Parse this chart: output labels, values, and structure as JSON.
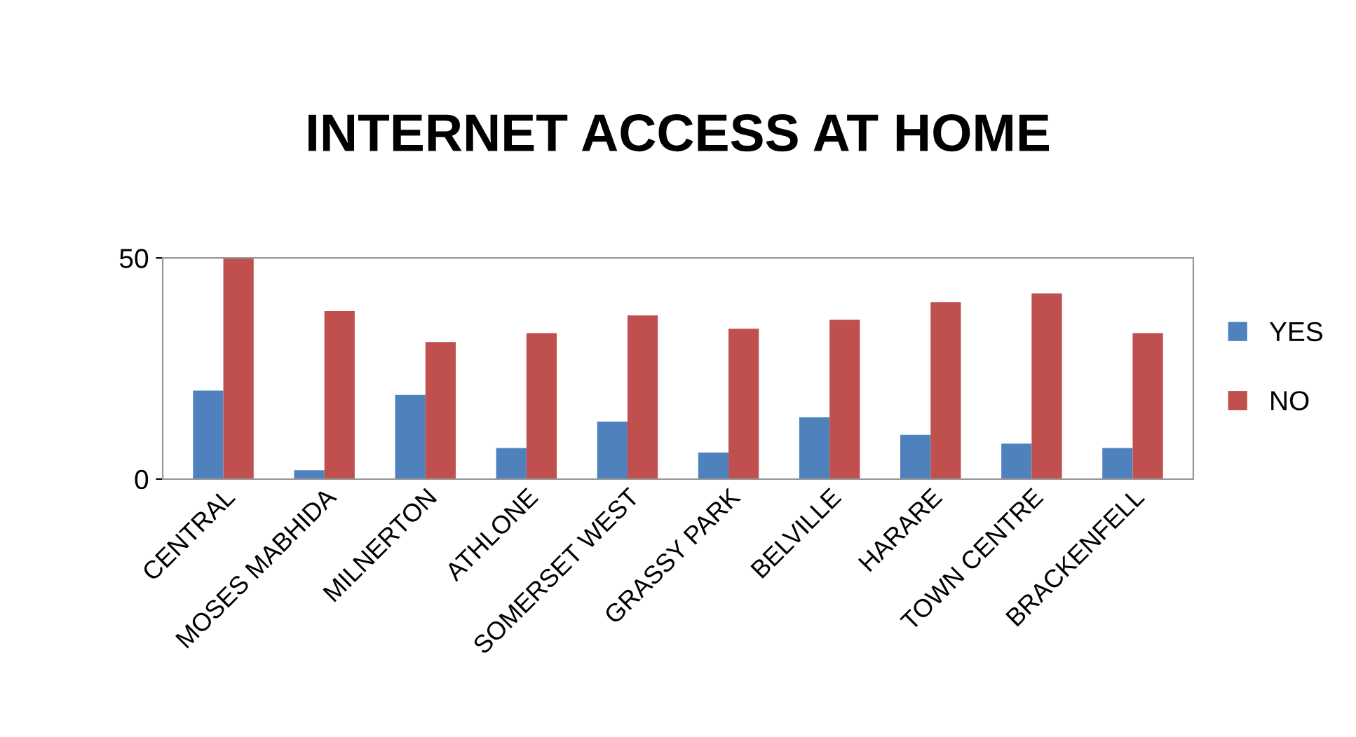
{
  "chart_data": {
    "type": "bar",
    "title": "INTERNET ACCESS AT HOME",
    "categories": [
      "CENTRAL",
      "MOSES MABHIDA",
      "MILNERTON",
      "ATHLONE",
      "SOMERSET WEST",
      "GRASSY PARK",
      "BELVILLE",
      "HARARE",
      "TOWN CENTRE",
      "BRACKENFELL"
    ],
    "series": [
      {
        "name": "YES",
        "color": "#4f81bd",
        "values": [
          20,
          2,
          19,
          7,
          13,
          6,
          14,
          10,
          8,
          7
        ]
      },
      {
        "name": "NO",
        "color": "#c0504d",
        "values": [
          50,
          38,
          31,
          33,
          37,
          34,
          36,
          40,
          42,
          33
        ]
      }
    ],
    "ylim": [
      0,
      50
    ],
    "yticks": [
      0,
      50
    ],
    "grid": false,
    "legend": "right"
  }
}
